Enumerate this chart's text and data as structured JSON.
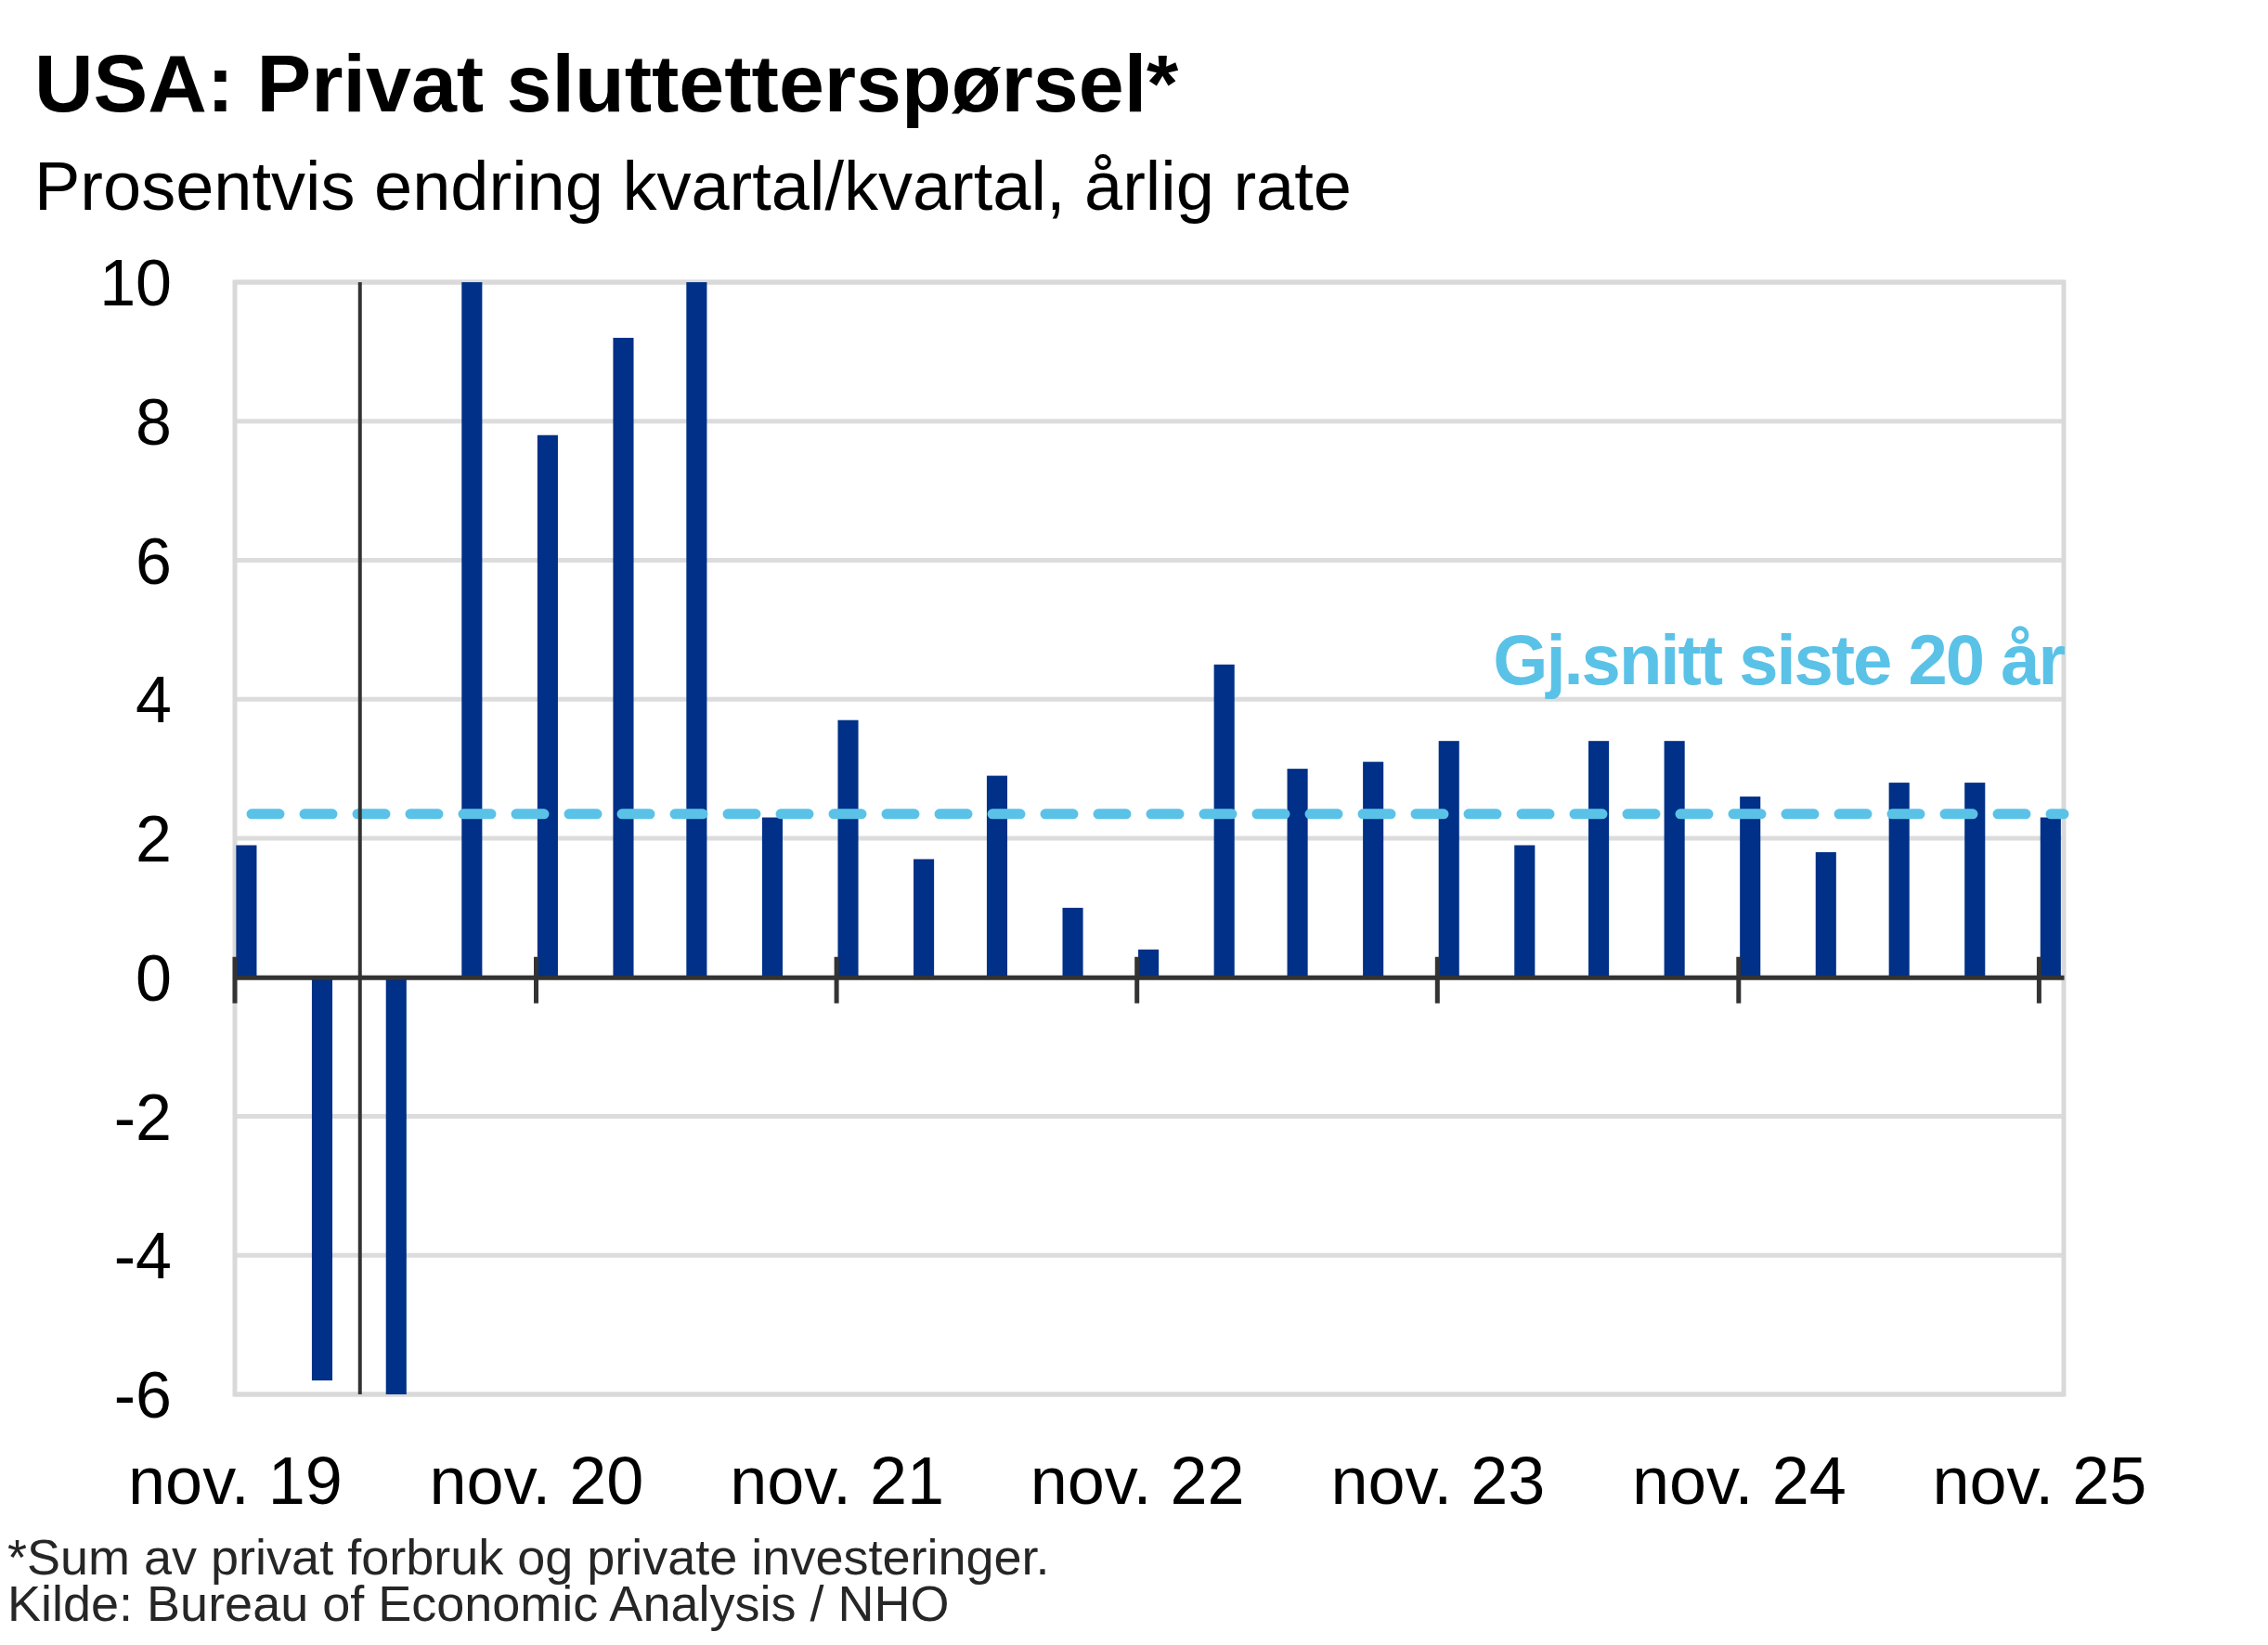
{
  "chart_data": {
    "type": "bar",
    "title": "USA: Privat sluttetterspørsel*",
    "subtitle": "Prosentvis endring kvartal/kvartal, årlig rate",
    "x": [
      "2019-11-15",
      "2020-02-15",
      "2020-05-15",
      "2020-08-15",
      "2020-11-15",
      "2021-02-15",
      "2021-05-15",
      "2021-08-15",
      "2021-11-15",
      "2022-02-15",
      "2022-05-15",
      "2022-08-15",
      "2022-11-15",
      "2023-02-15",
      "2023-05-15",
      "2023-08-15",
      "2023-11-15",
      "2024-02-15",
      "2024-05-15",
      "2024-08-15",
      "2024-11-15",
      "2025-02-15",
      "2025-05-15",
      "2025-08-15",
      "2025-11-15"
    ],
    "values": [
      1.9,
      -5.8,
      -6,
      10,
      7.8,
      9.2,
      10,
      2.3,
      3.7,
      1.7,
      2.9,
      1.0,
      0.4,
      4.5,
      3.0,
      3.1,
      3.4,
      1.9,
      3.4,
      3.4,
      2.6,
      1.8,
      2.8,
      2.8,
      2.3
    ],
    "color": "#003087",
    "xlim": [
      "2019-11-01",
      "2025-12-01"
    ],
    "xticks": [
      {
        "value": "2019-11-01",
        "label": "nov. 19"
      },
      {
        "value": "2020-11-01",
        "label": "nov. 20"
      },
      {
        "value": "2021-11-01",
        "label": "nov. 21"
      },
      {
        "value": "2022-11-01",
        "label": "nov. 22"
      },
      {
        "value": "2023-11-01",
        "label": "nov. 23"
      },
      {
        "value": "2024-11-01",
        "label": "nov. 24"
      },
      {
        "value": "2025-11-01",
        "label": "nov. 25"
      }
    ],
    "ylim": [
      -6,
      10
    ],
    "yticks": [
      -6,
      -4,
      -2,
      0,
      2,
      4,
      6,
      8,
      10
    ],
    "grid": "y",
    "ref_lines": [
      {
        "axis": "y",
        "value": 2.35,
        "label": "Gj.snitt siste 20 år",
        "color": "#5bc2e7",
        "line_style": "dashed"
      },
      {
        "axis": "x",
        "value": "2020-04-01",
        "color": "#333333",
        "line_style": "solid"
      }
    ],
    "annotations": [
      "*Sum av privat forbruk og private investeringer.",
      "Kilde: Bureau of Economic Analysis / NHO"
    ]
  }
}
